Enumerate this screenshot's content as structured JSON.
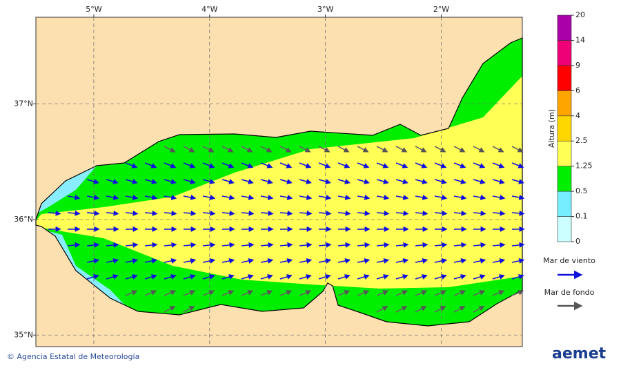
{
  "map": {
    "xlim": [
      -5.5,
      -1.3
    ],
    "ylim": [
      34.9,
      37.75
    ],
    "xticks": [
      {
        "value": -5,
        "label": "5°W"
      },
      {
        "value": -4,
        "label": "4°W"
      },
      {
        "value": -3,
        "label": "3°W"
      },
      {
        "value": -2,
        "label": "2°W"
      }
    ],
    "yticks": [
      {
        "value": 37,
        "label": "37°N"
      },
      {
        "value": 36,
        "label": "36°N"
      },
      {
        "value": 35,
        "label": "35°N"
      }
    ]
  },
  "colorbar": {
    "label": "Altura (m)",
    "ticks": [
      0,
      0.1,
      0.5,
      1.25,
      2.5,
      4,
      6,
      9,
      14,
      20
    ],
    "colors": [
      "#ccffff",
      "#77eeff",
      "#00ee00",
      "#ffff55",
      "#ffd700",
      "#ffa500",
      "#ff0000",
      "#ee0077",
      "#aa00aa"
    ]
  },
  "legend": [
    {
      "name": "Mar de viento",
      "color": "#1010dd"
    },
    {
      "name": "Mar de fondo",
      "color": "#555555"
    }
  ],
  "credit": "© Agencia Estatal de Meteorología",
  "logo": "aemet"
}
